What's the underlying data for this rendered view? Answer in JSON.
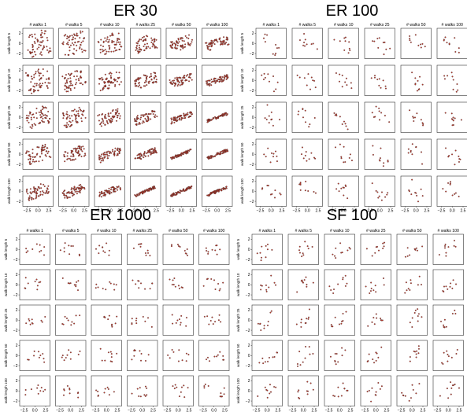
{
  "chart_data": [
    {
      "type": "scatter",
      "title": "ER 30",
      "column_titles": [
        "# walks 1",
        "# walks 5",
        "# walks 10",
        "# walks 25",
        "# walks 50",
        "# walks 100"
      ],
      "row_labels": [
        "walk length 5",
        "walk length 10",
        "walk length 25",
        "walk length 50",
        "walk length 100"
      ],
      "xticks": [
        "−2.5",
        "0.0",
        "2.5"
      ],
      "yticks": [
        "2",
        "0",
        "−2"
      ],
      "xlim": [
        -3.5,
        3.5
      ],
      "ylim": [
        -3,
        3
      ],
      "num_points": 60,
      "density": "dense",
      "show_axis_ticks": true
    },
    {
      "type": "scatter",
      "title": "ER 100",
      "column_titles": [
        "# walks 1",
        "# walks 5",
        "# walks 10",
        "# walks 25",
        "# walks 50",
        "# walks 100"
      ],
      "row_labels": [
        "walk length 5",
        "walk length 10",
        "walk length 25",
        "walk length 50",
        "walk length 100"
      ],
      "xticks": [
        "−2.5",
        "0.0",
        "2.5"
      ],
      "yticks": [
        "2",
        "0",
        "−2"
      ],
      "xlim": [
        -3.5,
        3.5
      ],
      "ylim": [
        -3,
        3
      ],
      "num_points": 10,
      "density": "sparse",
      "show_axis_ticks": true
    },
    {
      "type": "scatter",
      "title": "ER 1000",
      "column_titles": [
        "# walks 1",
        "# walks 5",
        "# walks 10",
        "# walks 25",
        "# walks 50",
        "# walks 100"
      ],
      "row_labels": [
        "walk length 5",
        "walk length 10",
        "walk length 25",
        "walk length 50",
        "walk length 100"
      ],
      "xticks": [
        "−2.5",
        "0.0",
        "2.5"
      ],
      "yticks": [
        "2",
        "0",
        "−2"
      ],
      "xlim": [
        -3.5,
        3.5
      ],
      "ylim": [
        -3,
        3
      ],
      "num_points": 10,
      "density": "sparse",
      "show_axis_ticks": true
    },
    {
      "type": "scatter",
      "title": "SF 100",
      "column_titles": [
        "# walks 1",
        "# walks 5",
        "# walks 10",
        "# walks 25",
        "# walks 50",
        "# walks 100"
      ],
      "row_labels": [
        "walk length 5",
        "walk length 10",
        "walk length 25",
        "walk length 50",
        "walk length 100"
      ],
      "xticks": [
        "−2.5",
        "0.0",
        "2.5"
      ],
      "yticks": [
        "2",
        "0",
        "−2"
      ],
      "xlim": [
        -3.5,
        3.5
      ],
      "ylim": [
        -3,
        3
      ],
      "num_points": 10,
      "density": "sparse",
      "show_axis_ticks": true
    }
  ],
  "colors": {
    "marker_fill": "#c0392b",
    "marker_edge": "#222222",
    "axes": "#333333",
    "background": "#ffffff"
  }
}
